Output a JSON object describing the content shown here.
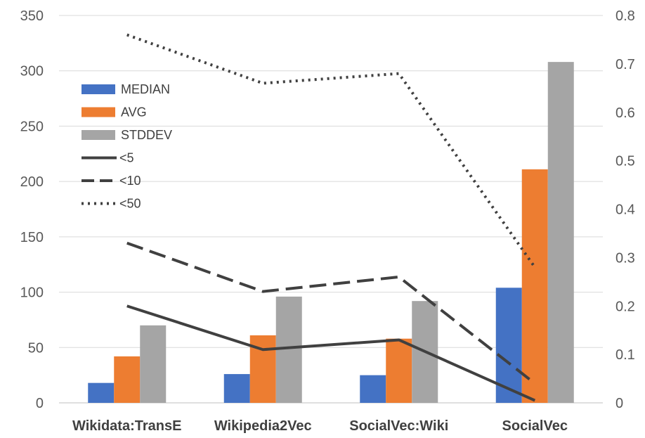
{
  "chart_data": {
    "type": "bar",
    "title": "",
    "categories": [
      "Wikidata:TransE",
      "Wikipedia2Vec",
      "SocialVec:Wiki",
      "SocialVec"
    ],
    "series": [
      {
        "name": "MEDIAN",
        "type": "bar",
        "axis": "left",
        "color": "#4472C4",
        "values": [
          18,
          26,
          25,
          104
        ]
      },
      {
        "name": "AVG",
        "type": "bar",
        "axis": "left",
        "color": "#ED7D31",
        "values": [
          42,
          61,
          58,
          211
        ]
      },
      {
        "name": "STDDEV",
        "type": "bar",
        "axis": "left",
        "color": "#A5A5A5",
        "values": [
          70,
          96,
          92,
          308
        ]
      },
      {
        "name": "<5",
        "type": "line",
        "axis": "right",
        "style": "solid",
        "color": "#404040",
        "values": [
          0.2,
          0.11,
          0.13,
          0.005
        ]
      },
      {
        "name": "<10",
        "type": "line",
        "axis": "right",
        "style": "dashed",
        "color": "#404040",
        "values": [
          0.33,
          0.23,
          0.26,
          0.04
        ]
      },
      {
        "name": "<50",
        "type": "line",
        "axis": "right",
        "style": "dotted",
        "color": "#404040",
        "values": [
          0.76,
          0.66,
          0.68,
          0.28
        ]
      }
    ],
    "y_left": {
      "label": "",
      "range": [
        0,
        350
      ],
      "ticks": [
        "0",
        "50",
        "100",
        "150",
        "200",
        "250",
        "300",
        "350"
      ]
    },
    "y_right": {
      "label": "",
      "range": [
        0,
        0.8
      ],
      "ticks": [
        "0",
        "0.1",
        "0.2",
        "0.3",
        "0.4",
        "0.5",
        "0.6",
        "0.7",
        "0.8"
      ]
    },
    "grid": true,
    "legend": "top-left"
  }
}
